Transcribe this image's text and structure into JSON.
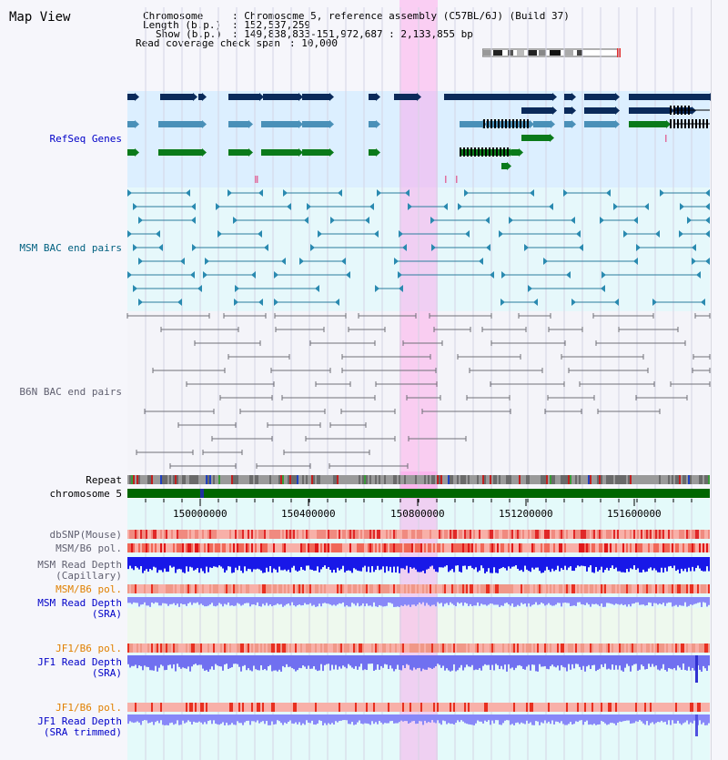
{
  "title": "Map View",
  "info": {
    "chromosome_key": "Chromosome",
    "chromosome_val": ": Chromosome 5, reference assembly (C57BL/6J) (Build 37)",
    "length_key": "Length (b.p.)",
    "length_val": ": 152,537,259",
    "show_key": "Show (b.p.)",
    "show_val": ": 149,838,833-151,972,687 : 2,133,855 bp",
    "coverage_key": "Read coverage check span",
    "coverage_val": ": 10,000"
  },
  "tracks": {
    "refseq": "RefSeq Genes",
    "msm_bac": "MSM BAC end pairs",
    "b6n_bac": "B6N BAC end pairs",
    "repeat": "Repeat",
    "chromosome": "chromosome 5",
    "dbsnp": "dbSNP(Mouse)",
    "msm_b6_pol_1": "MSM/B6 pol.",
    "msm_read_depth_cap_1": "MSM Read Depth",
    "msm_read_depth_cap_2": "(Capillary)",
    "msm_b6_pol_2": "MSM/B6 pol.",
    "msm_read_depth_sra_1": "MSM Read Depth",
    "msm_read_depth_sra_2": "(SRA)",
    "jf1_b6_pol_1": "JF1/B6 pol.",
    "jf1_read_depth_sra_1": "JF1 Read Depth",
    "jf1_read_depth_sra_2": "(SRA)",
    "jf1_b6_pol_2": "JF1/B6 pol.",
    "jf1_read_depth_trim_1": "JF1 Read Depth",
    "jf1_read_depth_trim_2": "(SRA trimmed)"
  },
  "ruler_ticks": [
    "150000000",
    "150400000",
    "150800000",
    "151200000",
    "151600000"
  ],
  "colors": {
    "refseq_bg": "#dcefff",
    "msm_bg": "#e6f8fb",
    "b6n_bg": "#f4f4f9",
    "lower_bg": "#e4fafa",
    "highlight": "#f7b8ea",
    "label_blue": "#0000c8",
    "label_teal": "#006080",
    "label_gray": "#606070",
    "label_orange": "#e08000",
    "gene_navy": "#0a2a5a",
    "gene_blue": "#4a90b8",
    "gene_green": "#0a7a1a",
    "chromosome_green": "#006600"
  }
}
